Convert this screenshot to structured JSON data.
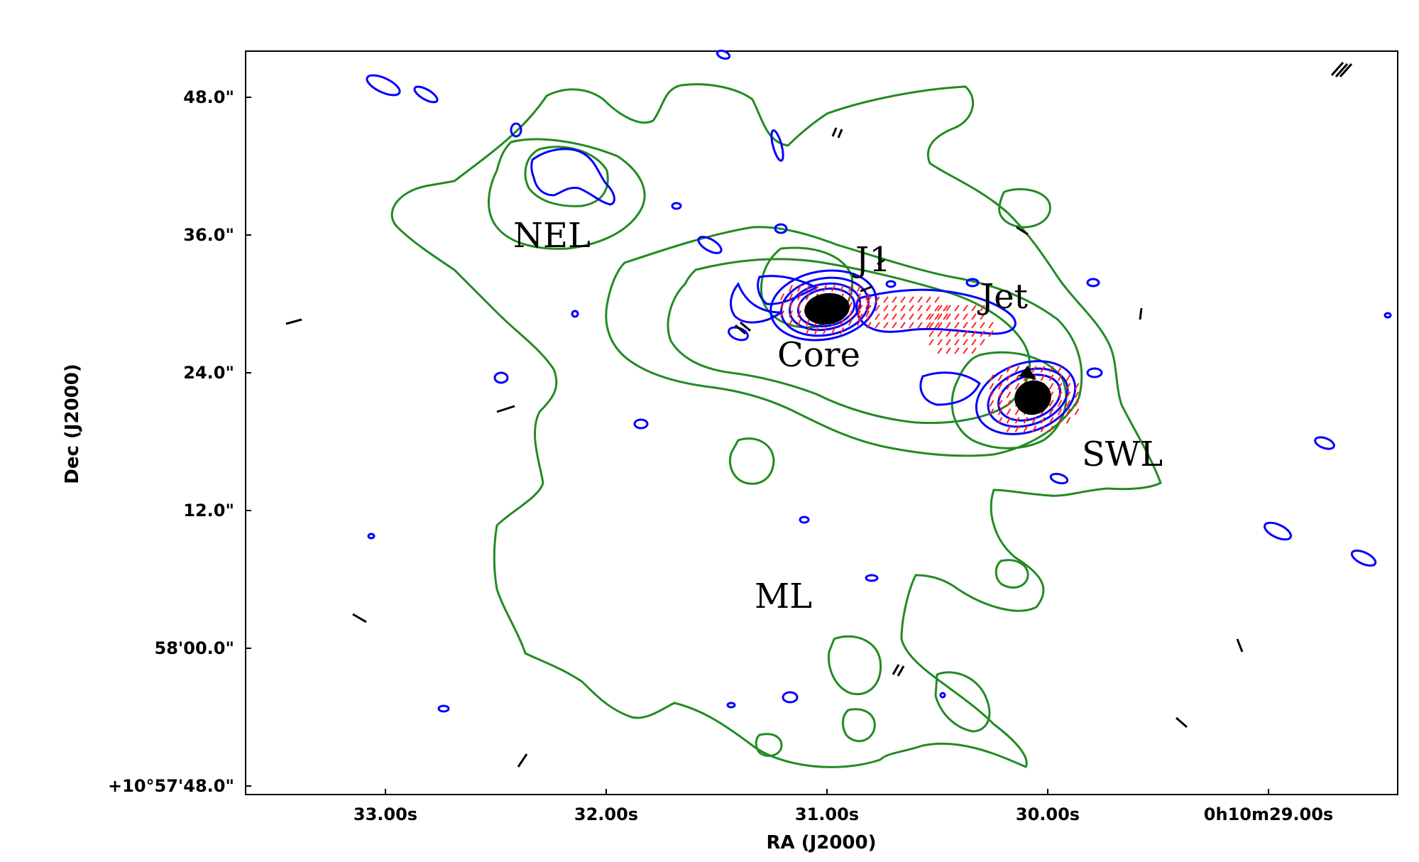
{
  "chart_data": {
    "type": "contour",
    "xlabel": "RA (J2000)",
    "ylabel": "Dec (J2000)",
    "x_ticks": [
      "33.00s",
      "32.00s",
      "31.00s",
      "30.00s",
      "0h10m29.00s"
    ],
    "y_ticks": [
      "+10°57'48.0\"",
      "58'00.0\"",
      "12.0\"",
      "24.0\"",
      "36.0\"",
      "48.0\""
    ],
    "annotations": [
      "NEL",
      "J1",
      "Jet",
      "Core",
      "SWL",
      "ML"
    ],
    "colors": {
      "green_contours": "#228b22",
      "blue_contours": "#0000ff",
      "red_vectors": "#ff2020",
      "black_vectors": "#000000"
    }
  }
}
